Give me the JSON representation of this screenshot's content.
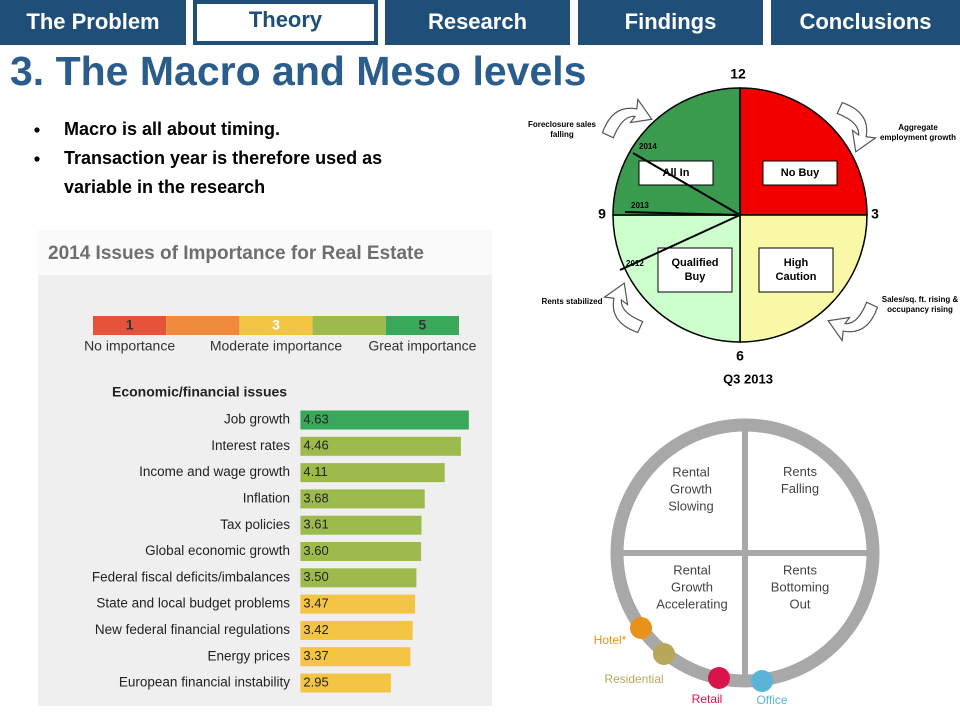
{
  "nav": {
    "tabs": [
      "The Problem",
      "Theory",
      "Research",
      "Findings",
      "Conclusions"
    ],
    "active": 1
  },
  "title": "3. The Macro and Meso levels",
  "bullets": [
    [
      "Macro is all about timing."
    ],
    [
      "Transaction year is therefore used as",
      "variable in the research"
    ]
  ],
  "chart_data": {
    "type": "bar",
    "orientation": "horizontal",
    "title": "2014 Issues of Importance for Real Estate",
    "scale_colors": [
      "#e5533b",
      "#ef8a3c",
      "#f4c445",
      "#9dbb4d",
      "#3aa85a"
    ],
    "scale_ticks": [
      1,
      3,
      5
    ],
    "scale_labels": [
      "No importance",
      "Moderate importance",
      "Great importance"
    ],
    "section": "Economic/financial issues",
    "categories": [
      "Job growth",
      "Interest rates",
      "Income and wage growth",
      "Inflation",
      "Tax policies",
      "Global economic growth",
      "Federal fiscal deficits/imbalances",
      "State and local budget problems",
      "New federal financial regulations",
      "Energy prices",
      "European financial instability"
    ],
    "values": [
      4.63,
      4.46,
      4.11,
      3.68,
      3.61,
      3.6,
      3.5,
      3.47,
      3.42,
      3.37,
      2.95
    ],
    "value_labels": [
      "4.63",
      "4.46",
      "4.11",
      "3.68",
      "3.61",
      "3.60",
      "3.50",
      "3.47",
      "3.42",
      "3.37",
      "2.95"
    ],
    "colors": [
      "#3aa85a",
      "#9dbb4d",
      "#9dbb4d",
      "#9dbb4d",
      "#9dbb4d",
      "#9dbb4d",
      "#9dbb4d",
      "#f4c445",
      "#f4c445",
      "#f4c445",
      "#f4c445"
    ],
    "xlim": [
      1,
      5
    ]
  },
  "cycle": {
    "clock": [
      "12",
      "3",
      "6",
      "9"
    ],
    "quadrants": [
      {
        "label": [
          "No Buy"
        ],
        "color": "#f20000"
      },
      {
        "label": [
          "High",
          "Caution"
        ],
        "color": "#f8f8a6"
      },
      {
        "label": [
          "Qualified",
          "Buy"
        ],
        "color": "#ccffcc"
      },
      {
        "label": [
          "All In"
        ],
        "color": "#3a9a4e"
      }
    ],
    "drivers": [
      [
        "Aggregate",
        "employment growth"
      ],
      [
        "Sales/sq. ft. rising &",
        "occupancy rising"
      ],
      [
        "Rents stabilized"
      ],
      [
        "Foreclosure sales",
        "falling"
      ]
    ],
    "years": [
      "2014",
      "2013",
      "2012"
    ]
  },
  "meso": {
    "title": "Q3 2013",
    "quadrants": [
      [
        "Rental",
        "Growth",
        "Slowing"
      ],
      [
        "Rents",
        "Falling"
      ],
      [
        "Rents",
        "Bottoming",
        "Out"
      ],
      [
        "Rental",
        "Growth",
        "Accelerating"
      ]
    ],
    "sectors": [
      {
        "name": "Hotel*",
        "color": "#e8921a"
      },
      {
        "name": "Residential",
        "color": "#b8a75a"
      },
      {
        "name": "Retail",
        "color": "#d9144a"
      },
      {
        "name": "Office",
        "color": "#5ab4d8"
      }
    ]
  }
}
